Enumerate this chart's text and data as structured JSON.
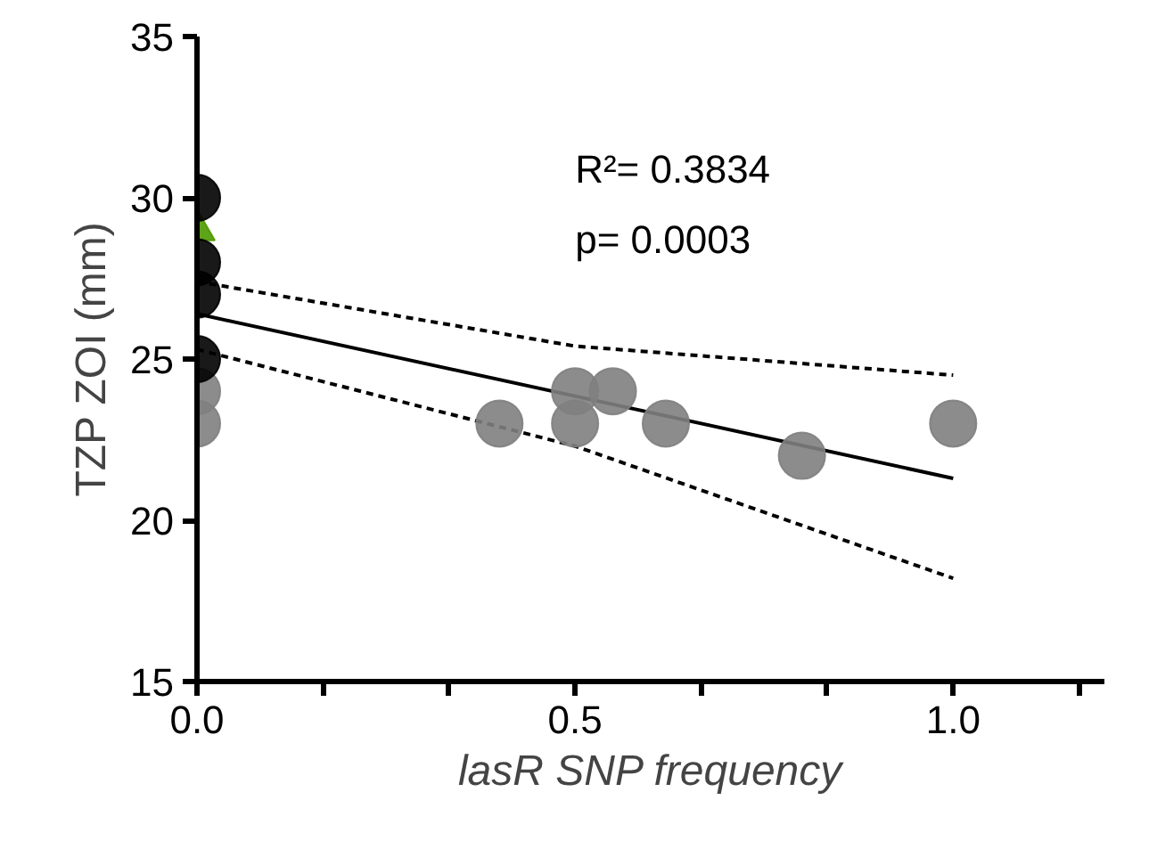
{
  "chart_data": {
    "type": "scatter",
    "xlabel": "lasR SNP frequency",
    "ylabel": "TZP ZOI (mm)",
    "xlim": [
      0,
      1.2
    ],
    "ylim": [
      15,
      35
    ],
    "xticks": [
      {
        "value": 0,
        "label": "0.0"
      },
      {
        "value": 0.1667,
        "label": null
      },
      {
        "value": 0.3333,
        "label": null
      },
      {
        "value": 0.5,
        "label": "0.5"
      },
      {
        "value": 0.6667,
        "label": null
      },
      {
        "value": 0.8333,
        "label": null
      },
      {
        "value": 1,
        "label": "1.0"
      },
      {
        "value": 1.1667,
        "label": null
      }
    ],
    "yticks": [
      15,
      20,
      25,
      30,
      35
    ],
    "grid": false,
    "annotations": [
      "R²= 0.3834",
      "p= 0.0003"
    ],
    "series": [
      {
        "type": "line",
        "color": "#000000",
        "line_style": "dashed",
        "marker": "none",
        "x": [
          0,
          0.5,
          1
        ],
        "values": [
          27.4,
          25.4,
          24.5
        ]
      },
      {
        "type": "line",
        "color": "#000000",
        "line_style": "dashed",
        "marker": "none",
        "x": [
          0,
          0.5,
          1
        ],
        "values": [
          25.3,
          22.3,
          18.2
        ]
      },
      {
        "type": "line",
        "color": "#000000",
        "line_style": "solid",
        "marker": "none",
        "x": [
          0,
          1
        ],
        "values": [
          26.4,
          21.3
        ]
      },
      {
        "color": "#808080",
        "marker": "circle",
        "x": [
          0,
          0,
          0.4,
          0.5,
          0.5,
          0.55,
          0.62,
          0.8,
          1.0
        ],
        "values": [
          23,
          24,
          23,
          23,
          24,
          24,
          23,
          22,
          23
        ]
      },
      {
        "color": "#4c9a00",
        "marker": "triangle",
        "x": [
          0
        ],
        "values": [
          29
        ]
      },
      {
        "color": "#000000",
        "marker": "circle",
        "x": [
          0,
          0,
          0,
          0
        ],
        "values": [
          30,
          28,
          27,
          25
        ]
      }
    ]
  }
}
